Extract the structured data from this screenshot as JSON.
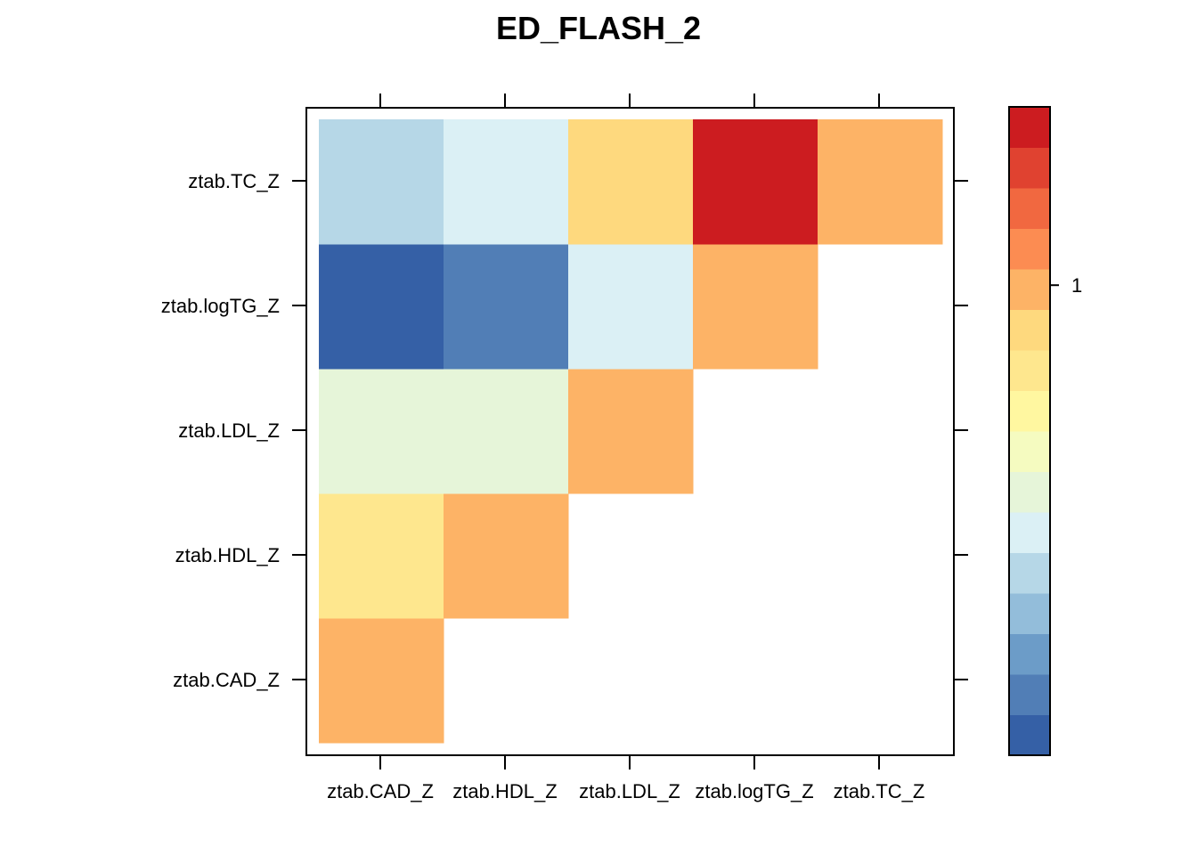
{
  "chart_data": {
    "type": "heatmap",
    "title": "ED_FLASH_2",
    "x_categories": [
      "ztab.CAD_Z",
      "ztab.HDL_Z",
      "ztab.LDL_Z",
      "ztab.logTG_Z",
      "ztab.TC_Z"
    ],
    "y_categories": [
      "ztab.CAD_Z",
      "ztab.HDL_Z",
      "ztab.LDL_Z",
      "ztab.logTG_Z",
      "ztab.TC_Z"
    ],
    "cells": [
      {
        "x": "ztab.CAD_Z",
        "y": "ztab.CAD_Z",
        "color": "#FDB366"
      },
      {
        "x": "ztab.CAD_Z",
        "y": "ztab.HDL_Z",
        "color": "#FEE78E"
      },
      {
        "x": "ztab.HDL_Z",
        "y": "ztab.HDL_Z",
        "color": "#FDB366"
      },
      {
        "x": "ztab.CAD_Z",
        "y": "ztab.LDL_Z",
        "color": "#E6F5D9"
      },
      {
        "x": "ztab.HDL_Z",
        "y": "ztab.LDL_Z",
        "color": "#E6F5D9"
      },
      {
        "x": "ztab.LDL_Z",
        "y": "ztab.LDL_Z",
        "color": "#FDB366"
      },
      {
        "x": "ztab.CAD_Z",
        "y": "ztab.logTG_Z",
        "color": "#3560A6"
      },
      {
        "x": "ztab.HDL_Z",
        "y": "ztab.logTG_Z",
        "color": "#517EB6"
      },
      {
        "x": "ztab.LDL_Z",
        "y": "ztab.logTG_Z",
        "color": "#DBF0F5"
      },
      {
        "x": "ztab.logTG_Z",
        "y": "ztab.logTG_Z",
        "color": "#FDB366"
      },
      {
        "x": "ztab.CAD_Z",
        "y": "ztab.TC_Z",
        "color": "#B6D7E7"
      },
      {
        "x": "ztab.HDL_Z",
        "y": "ztab.TC_Z",
        "color": "#DBF0F5"
      },
      {
        "x": "ztab.LDL_Z",
        "y": "ztab.TC_Z",
        "color": "#FED97E"
      },
      {
        "x": "ztab.logTG_Z",
        "y": "ztab.TC_Z",
        "color": "#CC1C20"
      },
      {
        "x": "ztab.TC_Z",
        "y": "ztab.TC_Z",
        "color": "#FDB366"
      }
    ],
    "colorbar": {
      "colors_bottom_to_top": [
        "#3560A6",
        "#517EB6",
        "#6C9CC8",
        "#93BDDA",
        "#B6D7E7",
        "#DBF0F5",
        "#E6F5D9",
        "#F5FBC0",
        "#FFF7A0",
        "#FEE78E",
        "#FED97E",
        "#FDB366",
        "#FC8C52",
        "#F16840",
        "#E04230",
        "#CC1C20"
      ],
      "ticks": [
        {
          "value": 1,
          "label": "1",
          "band_position": 11.6
        }
      ]
    },
    "grid": false,
    "legend": "right"
  }
}
